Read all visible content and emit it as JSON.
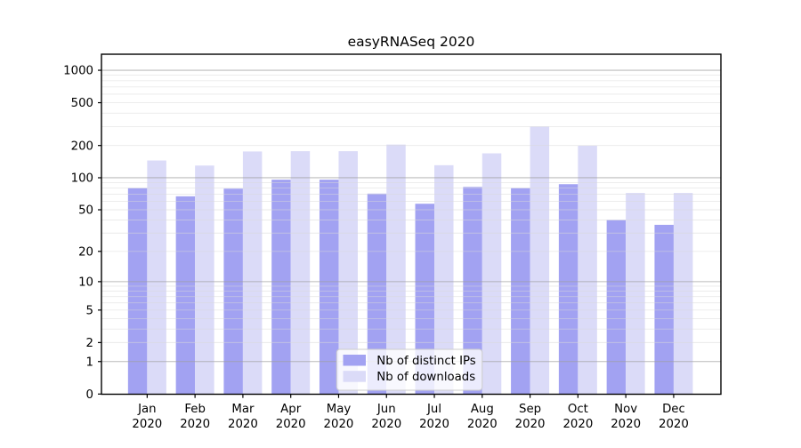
{
  "title": "easyRNASeq 2020",
  "chart_data": {
    "type": "bar",
    "title": "easyRNASeq 2020",
    "categories": [
      "Jan 2020",
      "Feb 2020",
      "Mar 2020",
      "Apr 2020",
      "May 2020",
      "Jun 2020",
      "Jul 2020",
      "Aug 2020",
      "Sep 2020",
      "Oct 2020",
      "Nov 2020",
      "Dec 2020"
    ],
    "series": [
      {
        "name": "Nb of distinct IPs",
        "color": "#a2a2f2",
        "values": [
          80,
          67,
          79,
          96,
          96,
          71,
          57,
          82,
          80,
          87,
          40,
          36
        ]
      },
      {
        "name": "Nb of downloads",
        "color": "#dbdbf8",
        "values": [
          145,
          130,
          176,
          177,
          177,
          204,
          131,
          169,
          300,
          199,
          72,
          72
        ]
      }
    ],
    "xlabel": "",
    "ylabel": "",
    "yscale": "log1p",
    "y_ticks": [
      0,
      1,
      2,
      5,
      10,
      20,
      50,
      100,
      200,
      500,
      1000
    ],
    "ylim": [
      0,
      1400
    ],
    "grid": "horizontal-major-and-minor",
    "legend_position": "lower-center",
    "colors": {
      "background": "#ffffff",
      "spine": "#000000",
      "grid_major": "#a0a0a0",
      "grid_minor": "#d9d9d9",
      "legend_border": "#cccccc",
      "legend_fill": "#ffffff"
    }
  }
}
